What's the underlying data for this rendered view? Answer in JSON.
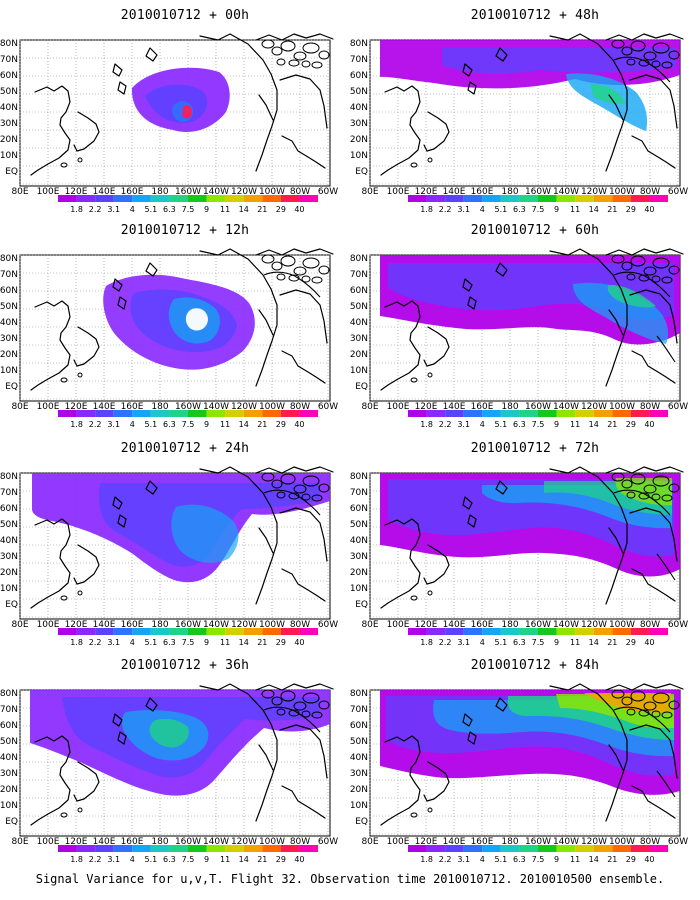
{
  "panels": [
    {
      "title": "2010010712 + 00h"
    },
    {
      "title": "2010010712 + 48h"
    },
    {
      "title": "2010010712 + 12h"
    },
    {
      "title": "2010010712 + 60h"
    },
    {
      "title": "2010010712 + 24h"
    },
    {
      "title": "2010010712 + 72h"
    },
    {
      "title": "2010010712 + 36h"
    },
    {
      "title": "2010010712 + 84h"
    }
  ],
  "axes": {
    "lat_labels": [
      "80N",
      "70N",
      "60N",
      "50N",
      "40N",
      "30N",
      "20N",
      "10N",
      "EQ"
    ],
    "lon_labels": [
      "80E",
      "100E",
      "120E",
      "140E",
      "160E",
      "180",
      "160W",
      "140W",
      "120W",
      "100W",
      "80W",
      "60W"
    ]
  },
  "legend": {
    "levels": [
      "1.8",
      "2.2",
      "3.1",
      "4",
      "5.1",
      "6.3",
      "7.5",
      "9",
      "11",
      "14",
      "21",
      "29",
      "40"
    ],
    "colors": [
      "#b000e8",
      "#8a28ff",
      "#5b42ff",
      "#2f72ff",
      "#14a6f4",
      "#1bc8c8",
      "#1fd486",
      "#16c81c",
      "#8be600",
      "#d6cf00",
      "#f3a100",
      "#ff6a00",
      "#ff1b52",
      "#ff00b8"
    ]
  },
  "caption": "Signal Variance for u,v,T. Flight 32. Observation time 2010010712. 2010010500 ensemble."
}
